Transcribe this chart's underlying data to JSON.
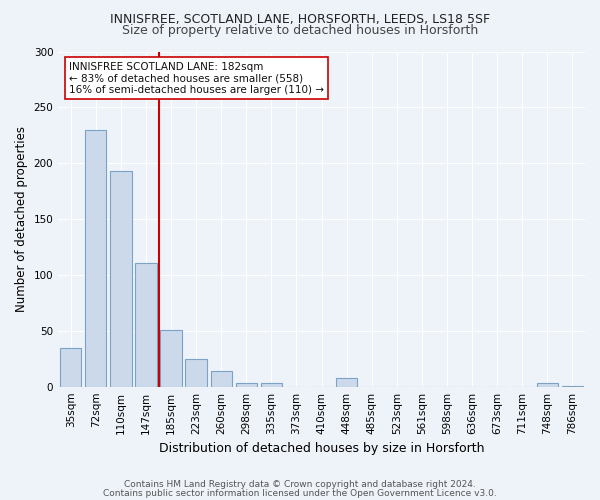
{
  "title1": "INNISFREE, SCOTLAND LANE, HORSFORTH, LEEDS, LS18 5SF",
  "title2": "Size of property relative to detached houses in Horsforth",
  "xlabel": "Distribution of detached houses by size in Horsforth",
  "ylabel": "Number of detached properties",
  "categories": [
    "35sqm",
    "72sqm",
    "110sqm",
    "147sqm",
    "185sqm",
    "223sqm",
    "260sqm",
    "298sqm",
    "335sqm",
    "373sqm",
    "410sqm",
    "448sqm",
    "485sqm",
    "523sqm",
    "561sqm",
    "598sqm",
    "636sqm",
    "673sqm",
    "711sqm",
    "748sqm",
    "786sqm"
  ],
  "values": [
    35,
    230,
    193,
    111,
    51,
    25,
    14,
    3,
    3,
    0,
    0,
    8,
    0,
    0,
    0,
    0,
    0,
    0,
    0,
    3,
    1
  ],
  "bar_color": "#ccd9ea",
  "bar_edge_color": "#7ba3c8",
  "vline_color": "#cc0000",
  "vline_x_idx": 3.5,
  "annotation_text": "INNISFREE SCOTLAND LANE: 182sqm\n← 83% of detached houses are smaller (558)\n16% of semi-detached houses are larger (110) →",
  "annotation_box_facecolor": "#ffffff",
  "annotation_box_edgecolor": "#cc0000",
  "ylim": [
    0,
    300
  ],
  "yticks": [
    0,
    50,
    100,
    150,
    200,
    250,
    300
  ],
  "footer1": "Contains HM Land Registry data © Crown copyright and database right 2024.",
  "footer2": "Contains public sector information licensed under the Open Government Licence v3.0.",
  "bg_color": "#eef2f9",
  "grid_color": "#ffffff",
  "title1_fontsize": 9,
  "title2_fontsize": 9,
  "xlabel_fontsize": 9,
  "ylabel_fontsize": 8.5,
  "tick_fontsize": 7.5,
  "footer_fontsize": 6.5,
  "ann_fontsize": 7.5
}
